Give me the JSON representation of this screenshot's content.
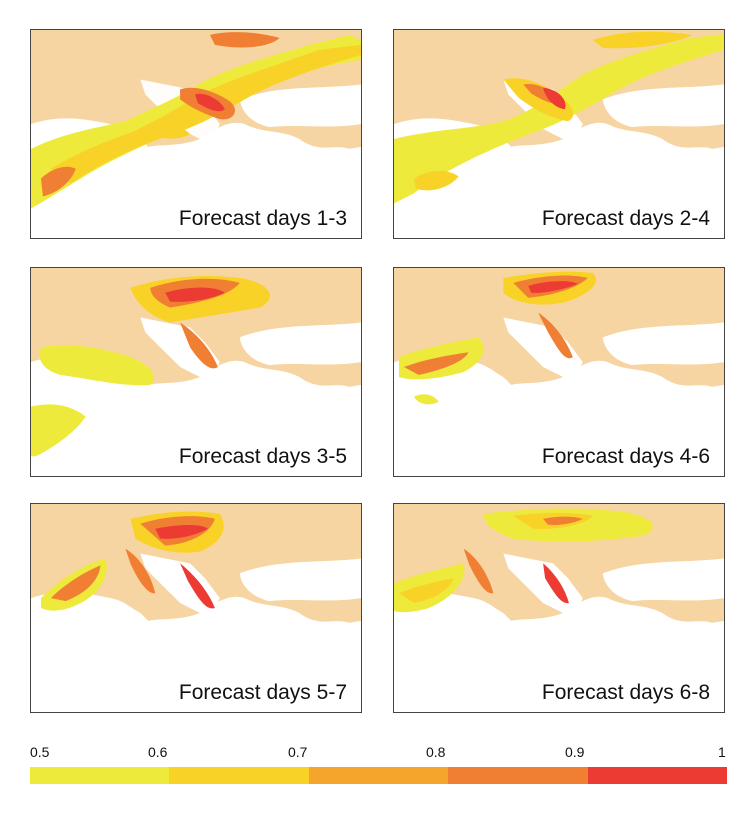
{
  "panels": [
    {
      "label": "Forecast days 1-3"
    },
    {
      "label": "Forecast days 2-4"
    },
    {
      "label": "Forecast days 3-5"
    },
    {
      "label": "Forecast days 4-6"
    },
    {
      "label": "Forecast days 5-7"
    },
    {
      "label": "Forecast days 6-8"
    }
  ],
  "legend": {
    "ticks": [
      "0.5",
      "0.6",
      "0.7",
      "0.8",
      "0.9",
      "1"
    ],
    "colors": [
      "#eeea3c",
      "#f9d228",
      "#f6a52c",
      "#f07f34",
      "#ec3b33"
    ]
  },
  "map_colors": {
    "land": "#f6d5a3",
    "sea": "#ffffff",
    "low": "#eeea3c",
    "mid": "#f9d228",
    "high": "#f07f34",
    "top": "#ec3b33"
  }
}
